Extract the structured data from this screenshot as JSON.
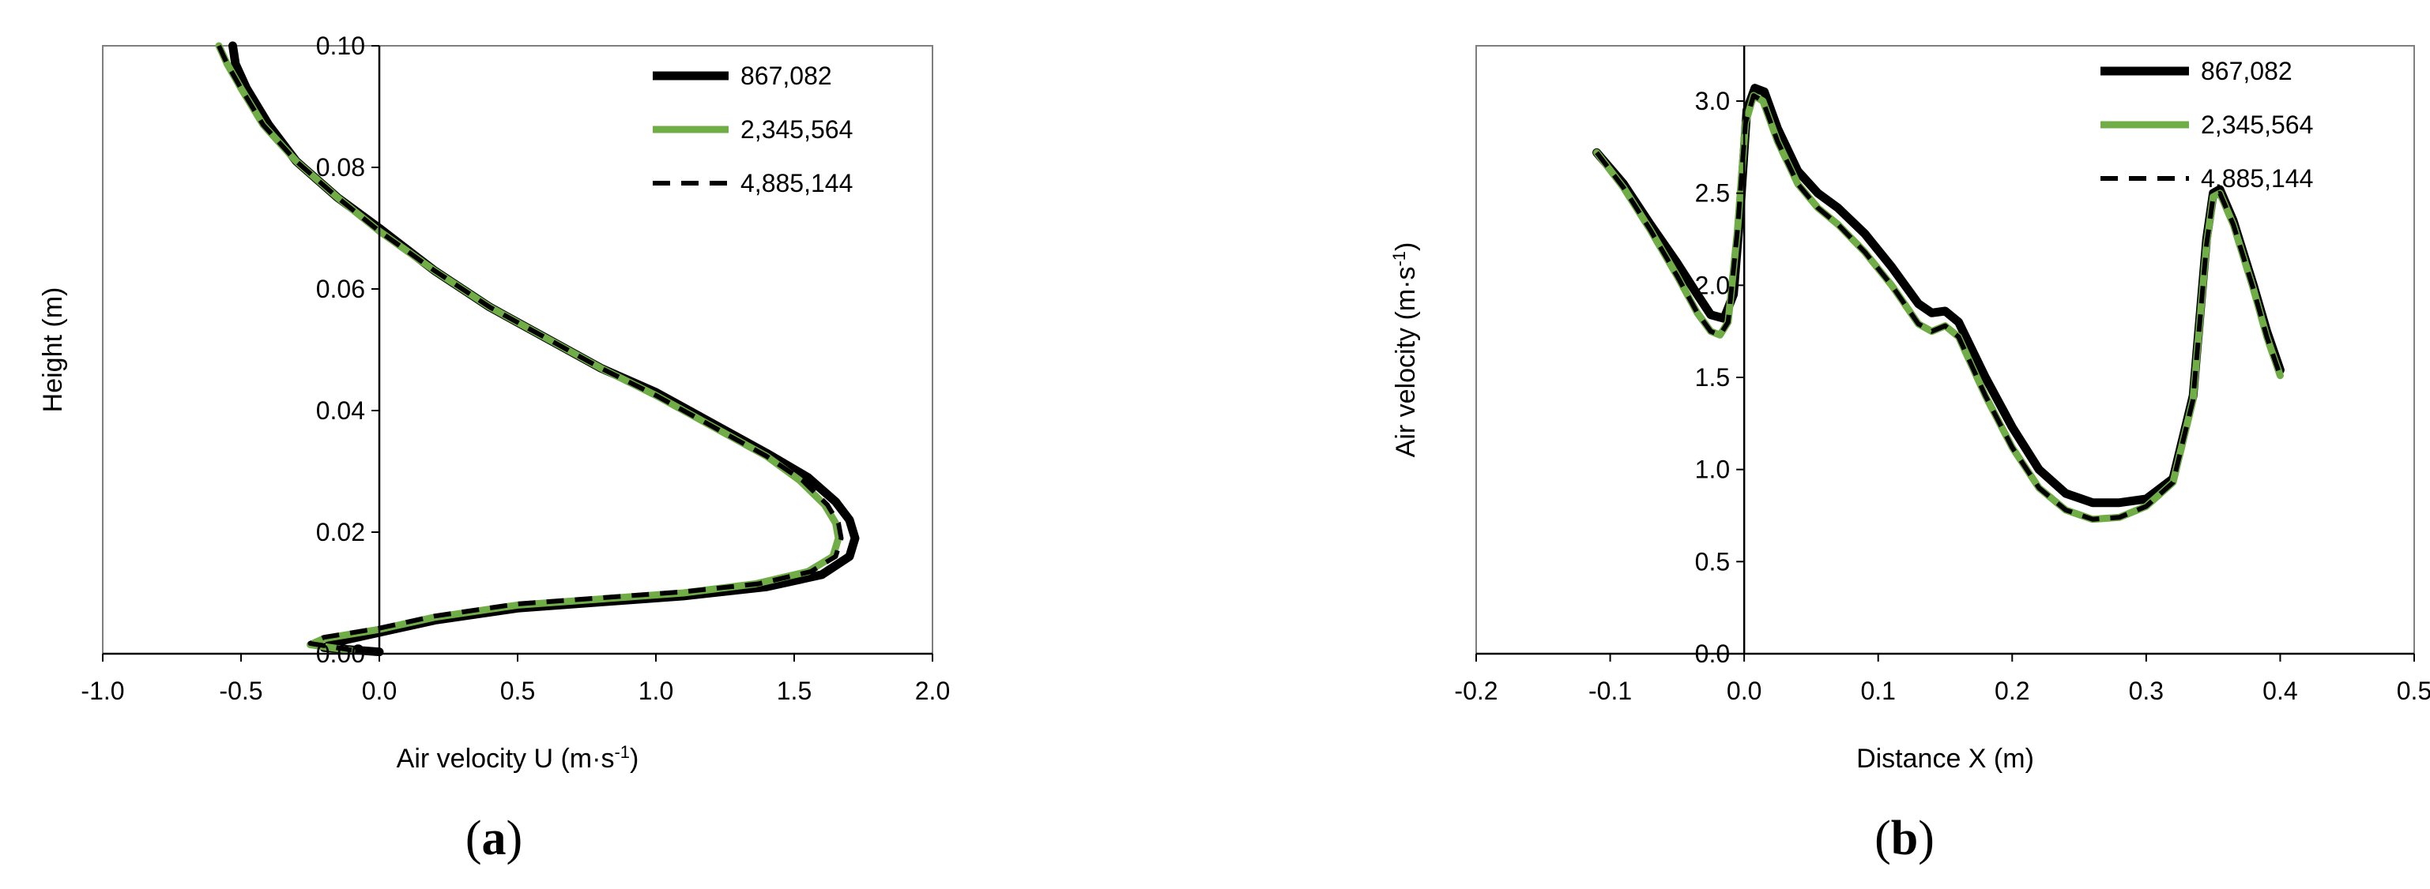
{
  "colors": {
    "coarse": "#000000",
    "medium": "#70ad47",
    "fine": "#000000",
    "axis": "#000000"
  },
  "chart_data": [
    {
      "type": "line",
      "panel_label": "a",
      "xlabel": "Air velocity U (m·s-1)",
      "ylabel": "Height (m)",
      "xlim": [
        -1.0,
        2.0
      ],
      "ylim": [
        0.0,
        0.1
      ],
      "x_ticks": [
        "-1.0",
        "-0.5",
        "0.0",
        "0.5",
        "1.0",
        "1.5",
        "2.0"
      ],
      "y_ticks": [
        "0.00",
        "0.02",
        "0.04",
        "0.06",
        "0.08",
        "0.10"
      ],
      "legend_position": "top-right",
      "grid": false,
      "series": [
        {
          "name": "867,082",
          "style": "solid-black",
          "points": [
            [
              -0.53,
              0.1
            ],
            [
              -0.52,
              0.097
            ],
            [
              -0.48,
              0.093
            ],
            [
              -0.4,
              0.087
            ],
            [
              -0.3,
              0.081
            ],
            [
              -0.15,
              0.075
            ],
            [
              0.0,
              0.07
            ],
            [
              0.2,
              0.063
            ],
            [
              0.4,
              0.057
            ],
            [
              0.6,
              0.052
            ],
            [
              0.8,
              0.047
            ],
            [
              1.0,
              0.043
            ],
            [
              1.2,
              0.038
            ],
            [
              1.4,
              0.033
            ],
            [
              1.55,
              0.029
            ],
            [
              1.65,
              0.025
            ],
            [
              1.7,
              0.022
            ],
            [
              1.72,
              0.019
            ],
            [
              1.7,
              0.016
            ],
            [
              1.6,
              0.013
            ],
            [
              1.4,
              0.011
            ],
            [
              1.1,
              0.0095
            ],
            [
              0.8,
              0.0085
            ],
            [
              0.5,
              0.0075
            ],
            [
              0.2,
              0.0055
            ],
            [
              0.0,
              0.0035
            ],
            [
              -0.15,
              0.002
            ],
            [
              -0.2,
              0.001
            ],
            [
              0.0,
              0.0003
            ]
          ]
        },
        {
          "name": "2,345,564",
          "style": "solid-green",
          "points": [
            [
              -0.58,
              0.1
            ],
            [
              -0.55,
              0.097
            ],
            [
              -0.5,
              0.093
            ],
            [
              -0.42,
              0.087
            ],
            [
              -0.3,
              0.081
            ],
            [
              -0.15,
              0.075
            ],
            [
              0.0,
              0.0695
            ],
            [
              0.2,
              0.063
            ],
            [
              0.4,
              0.057
            ],
            [
              0.6,
              0.052
            ],
            [
              0.8,
              0.047
            ],
            [
              1.0,
              0.0425
            ],
            [
              1.2,
              0.0375
            ],
            [
              1.4,
              0.0325
            ],
            [
              1.52,
              0.0285
            ],
            [
              1.61,
              0.0245
            ],
            [
              1.65,
              0.0215
            ],
            [
              1.66,
              0.019
            ],
            [
              1.64,
              0.016
            ],
            [
              1.55,
              0.0135
            ],
            [
              1.36,
              0.0115
            ],
            [
              1.1,
              0.01
            ],
            [
              0.8,
              0.009
            ],
            [
              0.5,
              0.008
            ],
            [
              0.2,
              0.006
            ],
            [
              0.0,
              0.004
            ],
            [
              -0.2,
              0.0025
            ],
            [
              -0.25,
              0.0015
            ],
            [
              -0.1,
              0.0005
            ]
          ]
        },
        {
          "name": "4,885,144",
          "style": "dashed-black",
          "points": [
            [
              -0.58,
              0.1
            ],
            [
              -0.55,
              0.097
            ],
            [
              -0.5,
              0.093
            ],
            [
              -0.42,
              0.087
            ],
            [
              -0.3,
              0.081
            ],
            [
              -0.15,
              0.075
            ],
            [
              0.0,
              0.0695
            ],
            [
              0.2,
              0.063
            ],
            [
              0.4,
              0.057
            ],
            [
              0.6,
              0.052
            ],
            [
              0.8,
              0.047
            ],
            [
              1.0,
              0.0425
            ],
            [
              1.2,
              0.0375
            ],
            [
              1.4,
              0.0325
            ],
            [
              1.53,
              0.0285
            ],
            [
              1.62,
              0.0245
            ],
            [
              1.66,
              0.0215
            ],
            [
              1.67,
              0.019
            ],
            [
              1.65,
              0.016
            ],
            [
              1.56,
              0.0135
            ],
            [
              1.37,
              0.0115
            ],
            [
              1.1,
              0.0102
            ],
            [
              0.8,
              0.0092
            ],
            [
              0.5,
              0.0082
            ],
            [
              0.2,
              0.0062
            ],
            [
              0.0,
              0.0042
            ],
            [
              -0.2,
              0.0027
            ],
            [
              -0.25,
              0.0017
            ],
            [
              -0.1,
              0.0006
            ]
          ]
        }
      ]
    },
    {
      "type": "line",
      "panel_label": "b",
      "xlabel": "Distance X (m)",
      "ylabel": "Air velocity (m·s-1)",
      "xlim": [
        -0.2,
        0.5
      ],
      "ylim": [
        0.0,
        3.3
      ],
      "x_ticks": [
        "-0.2",
        "-0.1",
        "0.0",
        "0.1",
        "0.2",
        "0.3",
        "0.4",
        "0.5"
      ],
      "y_ticks": [
        "0.0",
        "0.5",
        "1.0",
        "1.5",
        "2.0",
        "2.5",
        "3.0"
      ],
      "legend_position": "top-right",
      "grid": false,
      "series": [
        {
          "name": "867,082",
          "style": "solid-black",
          "points": [
            [
              -0.11,
              2.72
            ],
            [
              -0.09,
              2.55
            ],
            [
              -0.07,
              2.33
            ],
            [
              -0.05,
              2.12
            ],
            [
              -0.035,
              1.95
            ],
            [
              -0.025,
              1.84
            ],
            [
              -0.015,
              1.82
            ],
            [
              -0.008,
              1.95
            ],
            [
              -0.003,
              2.4
            ],
            [
              0.002,
              2.95
            ],
            [
              0.008,
              3.07
            ],
            [
              0.015,
              3.05
            ],
            [
              0.025,
              2.85
            ],
            [
              0.04,
              2.62
            ],
            [
              0.055,
              2.5
            ],
            [
              0.07,
              2.42
            ],
            [
              0.09,
              2.28
            ],
            [
              0.11,
              2.1
            ],
            [
              0.13,
              1.9
            ],
            [
              0.14,
              1.85
            ],
            [
              0.15,
              1.86
            ],
            [
              0.16,
              1.8
            ],
            [
              0.18,
              1.5
            ],
            [
              0.2,
              1.23
            ],
            [
              0.22,
              1.0
            ],
            [
              0.24,
              0.87
            ],
            [
              0.26,
              0.82
            ],
            [
              0.28,
              0.82
            ],
            [
              0.3,
              0.84
            ],
            [
              0.32,
              0.95
            ],
            [
              0.335,
              1.4
            ],
            [
              0.345,
              2.25
            ],
            [
              0.35,
              2.5
            ],
            [
              0.355,
              2.52
            ],
            [
              0.365,
              2.35
            ],
            [
              0.38,
              2.0
            ],
            [
              0.39,
              1.75
            ],
            [
              0.4,
              1.54
            ]
          ]
        },
        {
          "name": "2,345,564",
          "style": "solid-green",
          "points": [
            [
              -0.11,
              2.72
            ],
            [
              -0.09,
              2.53
            ],
            [
              -0.07,
              2.3
            ],
            [
              -0.05,
              2.05
            ],
            [
              -0.035,
              1.85
            ],
            [
              -0.025,
              1.75
            ],
            [
              -0.018,
              1.73
            ],
            [
              -0.012,
              1.8
            ],
            [
              -0.005,
              2.3
            ],
            [
              0.001,
              2.88
            ],
            [
              0.007,
              3.03
            ],
            [
              0.014,
              3.0
            ],
            [
              0.025,
              2.78
            ],
            [
              0.04,
              2.55
            ],
            [
              0.055,
              2.42
            ],
            [
              0.07,
              2.33
            ],
            [
              0.09,
              2.18
            ],
            [
              0.11,
              2.0
            ],
            [
              0.13,
              1.79
            ],
            [
              0.14,
              1.75
            ],
            [
              0.15,
              1.78
            ],
            [
              0.16,
              1.72
            ],
            [
              0.18,
              1.4
            ],
            [
              0.2,
              1.12
            ],
            [
              0.22,
              0.9
            ],
            [
              0.24,
              0.78
            ],
            [
              0.26,
              0.73
            ],
            [
              0.28,
              0.74
            ],
            [
              0.3,
              0.8
            ],
            [
              0.32,
              0.93
            ],
            [
              0.335,
              1.38
            ],
            [
              0.345,
              2.22
            ],
            [
              0.35,
              2.48
            ],
            [
              0.355,
              2.5
            ],
            [
              0.365,
              2.33
            ],
            [
              0.38,
              1.98
            ],
            [
              0.39,
              1.72
            ],
            [
              0.4,
              1.51
            ]
          ]
        },
        {
          "name": "4,885,144",
          "style": "dashed-black",
          "points": [
            [
              -0.11,
              2.72
            ],
            [
              -0.09,
              2.53
            ],
            [
              -0.07,
              2.3
            ],
            [
              -0.05,
              2.05
            ],
            [
              -0.035,
              1.85
            ],
            [
              -0.025,
              1.75
            ],
            [
              -0.018,
              1.73
            ],
            [
              -0.012,
              1.8
            ],
            [
              -0.005,
              2.3
            ],
            [
              0.001,
              2.88
            ],
            [
              0.007,
              3.03
            ],
            [
              0.014,
              3.0
            ],
            [
              0.025,
              2.78
            ],
            [
              0.04,
              2.55
            ],
            [
              0.055,
              2.42
            ],
            [
              0.07,
              2.33
            ],
            [
              0.09,
              2.18
            ],
            [
              0.11,
              2.0
            ],
            [
              0.13,
              1.79
            ],
            [
              0.14,
              1.75
            ],
            [
              0.15,
              1.78
            ],
            [
              0.16,
              1.72
            ],
            [
              0.18,
              1.4
            ],
            [
              0.2,
              1.12
            ],
            [
              0.22,
              0.9
            ],
            [
              0.24,
              0.78
            ],
            [
              0.26,
              0.73
            ],
            [
              0.28,
              0.74
            ],
            [
              0.3,
              0.8
            ],
            [
              0.32,
              0.93
            ],
            [
              0.335,
              1.38
            ],
            [
              0.345,
              2.22
            ],
            [
              0.35,
              2.48
            ],
            [
              0.355,
              2.5
            ],
            [
              0.365,
              2.33
            ],
            [
              0.38,
              1.98
            ],
            [
              0.39,
              1.72
            ],
            [
              0.4,
              1.51
            ]
          ]
        }
      ]
    }
  ]
}
